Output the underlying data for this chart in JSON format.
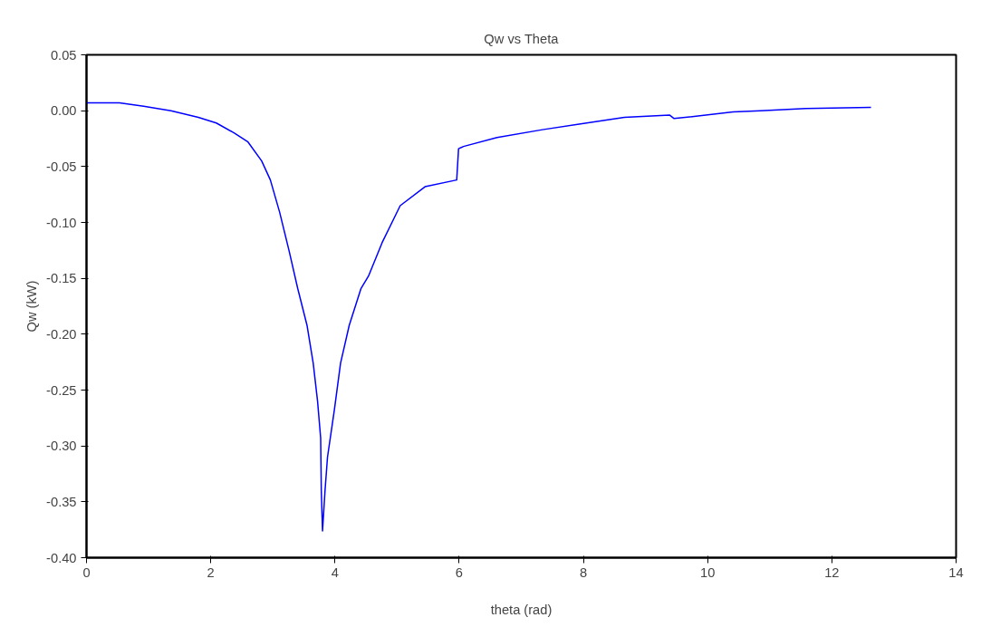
{
  "chart_data": {
    "type": "line",
    "title": "Qw vs Theta",
    "xlabel": "theta (rad)",
    "ylabel": "Qw (kW)",
    "x": [
      0,
      0.53,
      0.92,
      1.36,
      1.8,
      2.09,
      2.38,
      2.6,
      2.82,
      2.96,
      3.11,
      3.26,
      3.4,
      3.55,
      3.65,
      3.72,
      3.77,
      3.78,
      3.8,
      3.84,
      3.88,
      3.99,
      4.09,
      4.23,
      4.42,
      4.54,
      4.76,
      5.05,
      5.45,
      5.96,
      5.99,
      6.07,
      6.61,
      7.34,
      7.93,
      8.66,
      9.39,
      9.46,
      9.97,
      10.41,
      10.85,
      11.58,
      12.63
    ],
    "series": [
      {
        "color": "#0000ff",
        "values": [
          0.007,
          0.007,
          0.004,
          0.0,
          -0.006,
          -0.011,
          -0.02,
          -0.028,
          -0.045,
          -0.062,
          -0.091,
          -0.125,
          -0.159,
          -0.192,
          -0.226,
          -0.26,
          -0.293,
          -0.34,
          -0.376,
          -0.34,
          -0.31,
          -0.268,
          -0.226,
          -0.192,
          -0.159,
          -0.148,
          -0.118,
          -0.085,
          -0.068,
          -0.062,
          -0.034,
          -0.032,
          -0.024,
          -0.017,
          -0.012,
          -0.006,
          -0.004,
          -0.007,
          -0.004,
          -0.001,
          0.0,
          0.002,
          0.003
        ]
      }
    ],
    "xlim": [
      0,
      14
    ],
    "xticks": [
      0,
      2,
      4,
      6,
      8,
      10,
      12,
      14
    ],
    "ylim": [
      -0.4,
      0.05
    ],
    "yticks": [
      {
        "value": -0.4,
        "label": "-0.40"
      },
      {
        "value": -0.35,
        "label": "-0.35"
      },
      {
        "value": -0.3,
        "label": "-0.30"
      },
      {
        "value": -0.25,
        "label": "-0.25"
      },
      {
        "value": -0.2,
        "label": "-0.20"
      },
      {
        "value": -0.15,
        "label": "-0.15"
      },
      {
        "value": -0.1,
        "label": "-0.10"
      },
      {
        "value": -0.05,
        "label": "-0.05"
      },
      {
        "value": 0,
        "label": "0.00"
      },
      {
        "value": 0.05,
        "label": "0.05"
      }
    ],
    "grid": false,
    "marker": "none",
    "line_style": "solid"
  }
}
